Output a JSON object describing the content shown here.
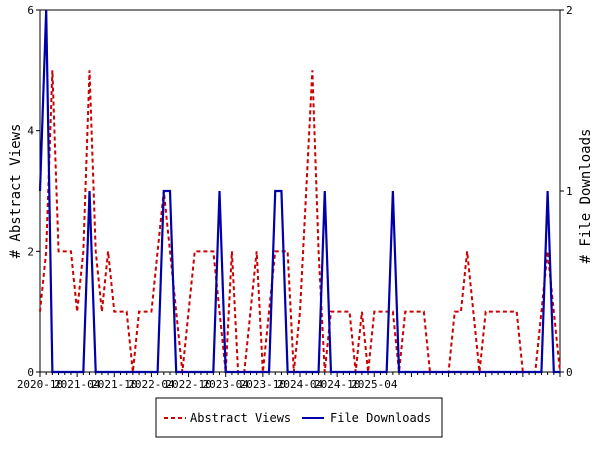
{
  "chart_data": {
    "type": "line",
    "title": "",
    "xlabel": "",
    "ylabel_left": "# Abstract Views",
    "ylabel_right": "# File Downloads",
    "x_tick_labels": [
      "2020-10",
      "2021-04",
      "2021-10",
      "2022-04",
      "2022-10",
      "2023-04",
      "2023-10",
      "2024-04",
      "2024-10",
      "2025-04"
    ],
    "ylim_left": [
      0,
      6
    ],
    "ylim_right": [
      0,
      2
    ],
    "y_ticks_left": [
      "0",
      "2",
      "4",
      "6"
    ],
    "y_ticks_right": [
      "0",
      "1",
      "2"
    ],
    "grid": false,
    "legend_position": "bottom",
    "series": [
      {
        "name": "Abstract Views",
        "axis": "left",
        "color": "#cc0000",
        "style": "dashed",
        "values": [
          1,
          2,
          5,
          2,
          2,
          2,
          1,
          2,
          5,
          2,
          1,
          2,
          1,
          1,
          1,
          0,
          1,
          1,
          1,
          2,
          3,
          2,
          1,
          0,
          1,
          2,
          2,
          2,
          2,
          1,
          0,
          2,
          0,
          0,
          1,
          2,
          0,
          1,
          2,
          2,
          2,
          0,
          1,
          3,
          5,
          2,
          0,
          1,
          1,
          1,
          1,
          0,
          1,
          0,
          1,
          1,
          1,
          1,
          0,
          1,
          1,
          1,
          1,
          0,
          0,
          0,
          0,
          1,
          1,
          2,
          1,
          0,
          1,
          1,
          1,
          1,
          1,
          1,
          0,
          0,
          0,
          1,
          2,
          1,
          0
        ]
      },
      {
        "name": "File Downloads",
        "axis": "right",
        "color": "#0000aa",
        "style": "solid",
        "values": [
          1,
          2,
          0,
          0,
          0,
          0,
          0,
          0,
          1,
          0,
          0,
          0,
          0,
          0,
          0,
          0,
          0,
          0,
          0,
          0,
          1,
          1,
          0,
          0,
          0,
          0,
          0,
          0,
          0,
          1,
          0,
          0,
          0,
          0,
          0,
          0,
          0,
          0,
          1,
          1,
          0,
          0,
          0,
          0,
          0,
          0,
          1,
          0,
          0,
          0,
          0,
          0,
          0,
          0,
          0,
          0,
          0,
          1,
          0,
          0,
          0,
          0,
          0,
          0,
          0,
          0,
          0,
          0,
          0,
          0,
          0,
          0,
          0,
          0,
          0,
          0,
          0,
          0,
          0,
          0,
          0,
          0,
          1,
          0,
          0
        ]
      }
    ]
  }
}
